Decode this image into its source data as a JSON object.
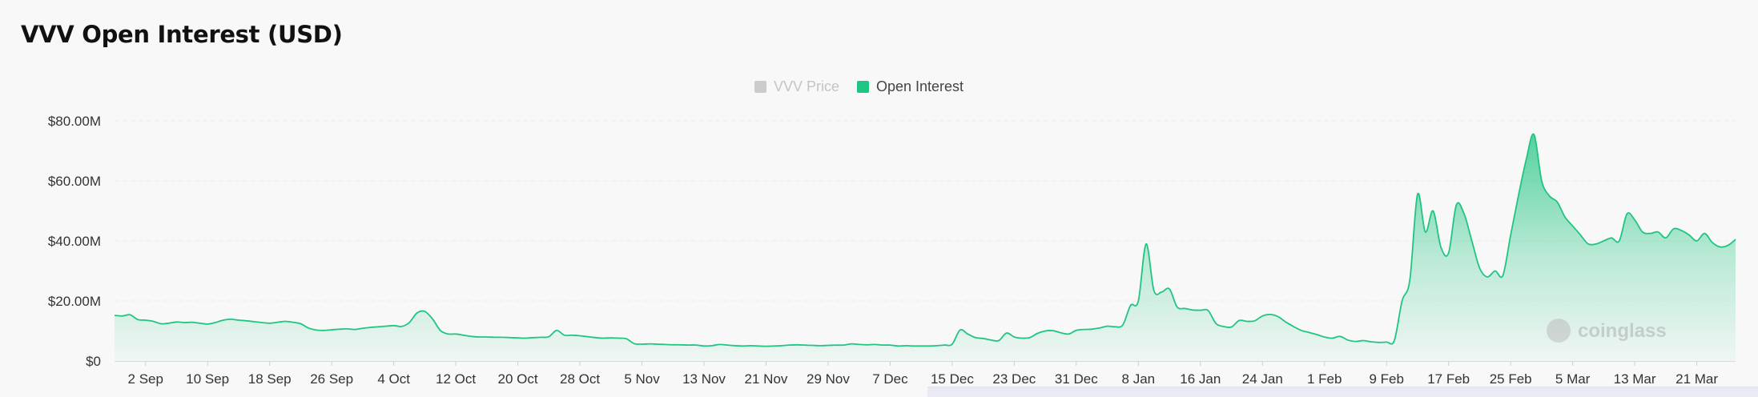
{
  "title": "VVV Open Interest (USD)",
  "legend": [
    {
      "label": "VVV Price",
      "color": "#cccccc",
      "active": false
    },
    {
      "label": "Open Interest",
      "color": "#1fc581",
      "active": true
    }
  ],
  "watermark": "coinglass",
  "colors": {
    "line": "#1fc581",
    "fill_top": "#1fc581",
    "grid": "#ececec",
    "axis_text": "#333333"
  },
  "chart_data": {
    "type": "area",
    "series": [
      {
        "name": "Open Interest"
      }
    ],
    "y_ticks": [
      "$0",
      "$20.00M",
      "$40.00M",
      "$60.00M",
      "$80.00M"
    ],
    "ylim": [
      0,
      80
    ],
    "y_unit": "$M",
    "x_ticks": [
      "2 Sep",
      "10 Sep",
      "18 Sep",
      "26 Sep",
      "4 Oct",
      "12 Oct",
      "20 Oct",
      "28 Oct",
      "5 Nov",
      "13 Nov",
      "21 Nov",
      "29 Nov",
      "7 Dec",
      "15 Dec",
      "23 Dec",
      "31 Dec",
      "8 Jan",
      "16 Jan",
      "24 Jan",
      "1 Feb",
      "9 Feb",
      "17 Feb",
      "25 Feb",
      "5 Mar",
      "13 Mar",
      "21 Mar"
    ],
    "x_tick_index": [
      4,
      12,
      20,
      28,
      36,
      44,
      52,
      60,
      68,
      76,
      84,
      92,
      100,
      108,
      116,
      124,
      132,
      140,
      148,
      156,
      164,
      172,
      180,
      188,
      196,
      204
    ],
    "grid": true,
    "values": [
      15.2,
      15.0,
      15.4,
      13.8,
      13.6,
      13.2,
      12.4,
      12.6,
      13.0,
      12.8,
      12.9,
      12.6,
      12.3,
      12.8,
      13.6,
      13.9,
      13.6,
      13.4,
      13.1,
      12.8,
      12.6,
      12.9,
      13.2,
      12.9,
      12.4,
      11.0,
      10.3,
      10.2,
      10.4,
      10.6,
      10.7,
      10.5,
      10.9,
      11.2,
      11.4,
      11.6,
      11.8,
      11.5,
      12.8,
      16.0,
      16.5,
      14.0,
      10.2,
      9.0,
      9.0,
      8.6,
      8.2,
      8.0,
      8.0,
      7.9,
      7.9,
      7.8,
      7.7,
      7.6,
      7.8,
      7.9,
      8.1,
      10.2,
      8.6,
      8.6,
      8.4,
      8.1,
      7.8,
      7.6,
      7.7,
      7.6,
      7.4,
      5.8,
      5.6,
      5.7,
      5.6,
      5.5,
      5.4,
      5.4,
      5.3,
      5.3,
      5.0,
      5.1,
      5.5,
      5.3,
      5.1,
      5.0,
      5.1,
      5.0,
      4.9,
      5.0,
      5.1,
      5.3,
      5.4,
      5.3,
      5.2,
      5.1,
      5.2,
      5.3,
      5.3,
      5.7,
      5.5,
      5.4,
      5.5,
      5.3,
      5.3,
      5.0,
      5.1,
      5.0,
      5.0,
      5.0,
      5.1,
      5.3,
      5.6,
      10.3,
      9.0,
      7.8,
      7.5,
      7.0,
      6.8,
      9.3,
      8.0,
      7.6,
      7.8,
      9.2,
      10.0,
      10.1,
      9.4,
      9.0,
      10.2,
      10.5,
      10.6,
      11.0,
      11.6,
      11.4,
      12.0,
      18.5,
      20.0,
      39.0,
      23.5,
      23.0,
      24.0,
      18.0,
      17.5,
      17.0,
      16.9,
      16.8,
      12.5,
      11.5,
      11.3,
      13.5,
      13.2,
      13.4,
      15.0,
      15.5,
      14.8,
      13.0,
      11.5,
      10.2,
      9.5,
      8.8,
      8.0,
      7.6,
      8.2,
      7.0,
      6.5,
      6.8,
      6.4,
      6.2,
      6.3,
      6.8,
      20.0,
      27.0,
      55.5,
      43.0,
      50.0,
      38.0,
      36.0,
      52.0,
      49.0,
      40.0,
      31.0,
      28.0,
      30.0,
      28.5,
      42.0,
      55.0,
      67.0,
      75.5,
      60.0,
      55.0,
      53.0,
      48.0,
      45.0,
      42.0,
      39.0,
      39.0,
      40.0,
      41.0,
      40.0,
      49.0,
      47.0,
      43.0,
      42.5,
      43.0,
      41.0,
      44.0,
      43.5,
      42.0,
      40.0,
      42.5,
      39.5,
      38.0,
      38.5,
      40.5
    ]
  }
}
